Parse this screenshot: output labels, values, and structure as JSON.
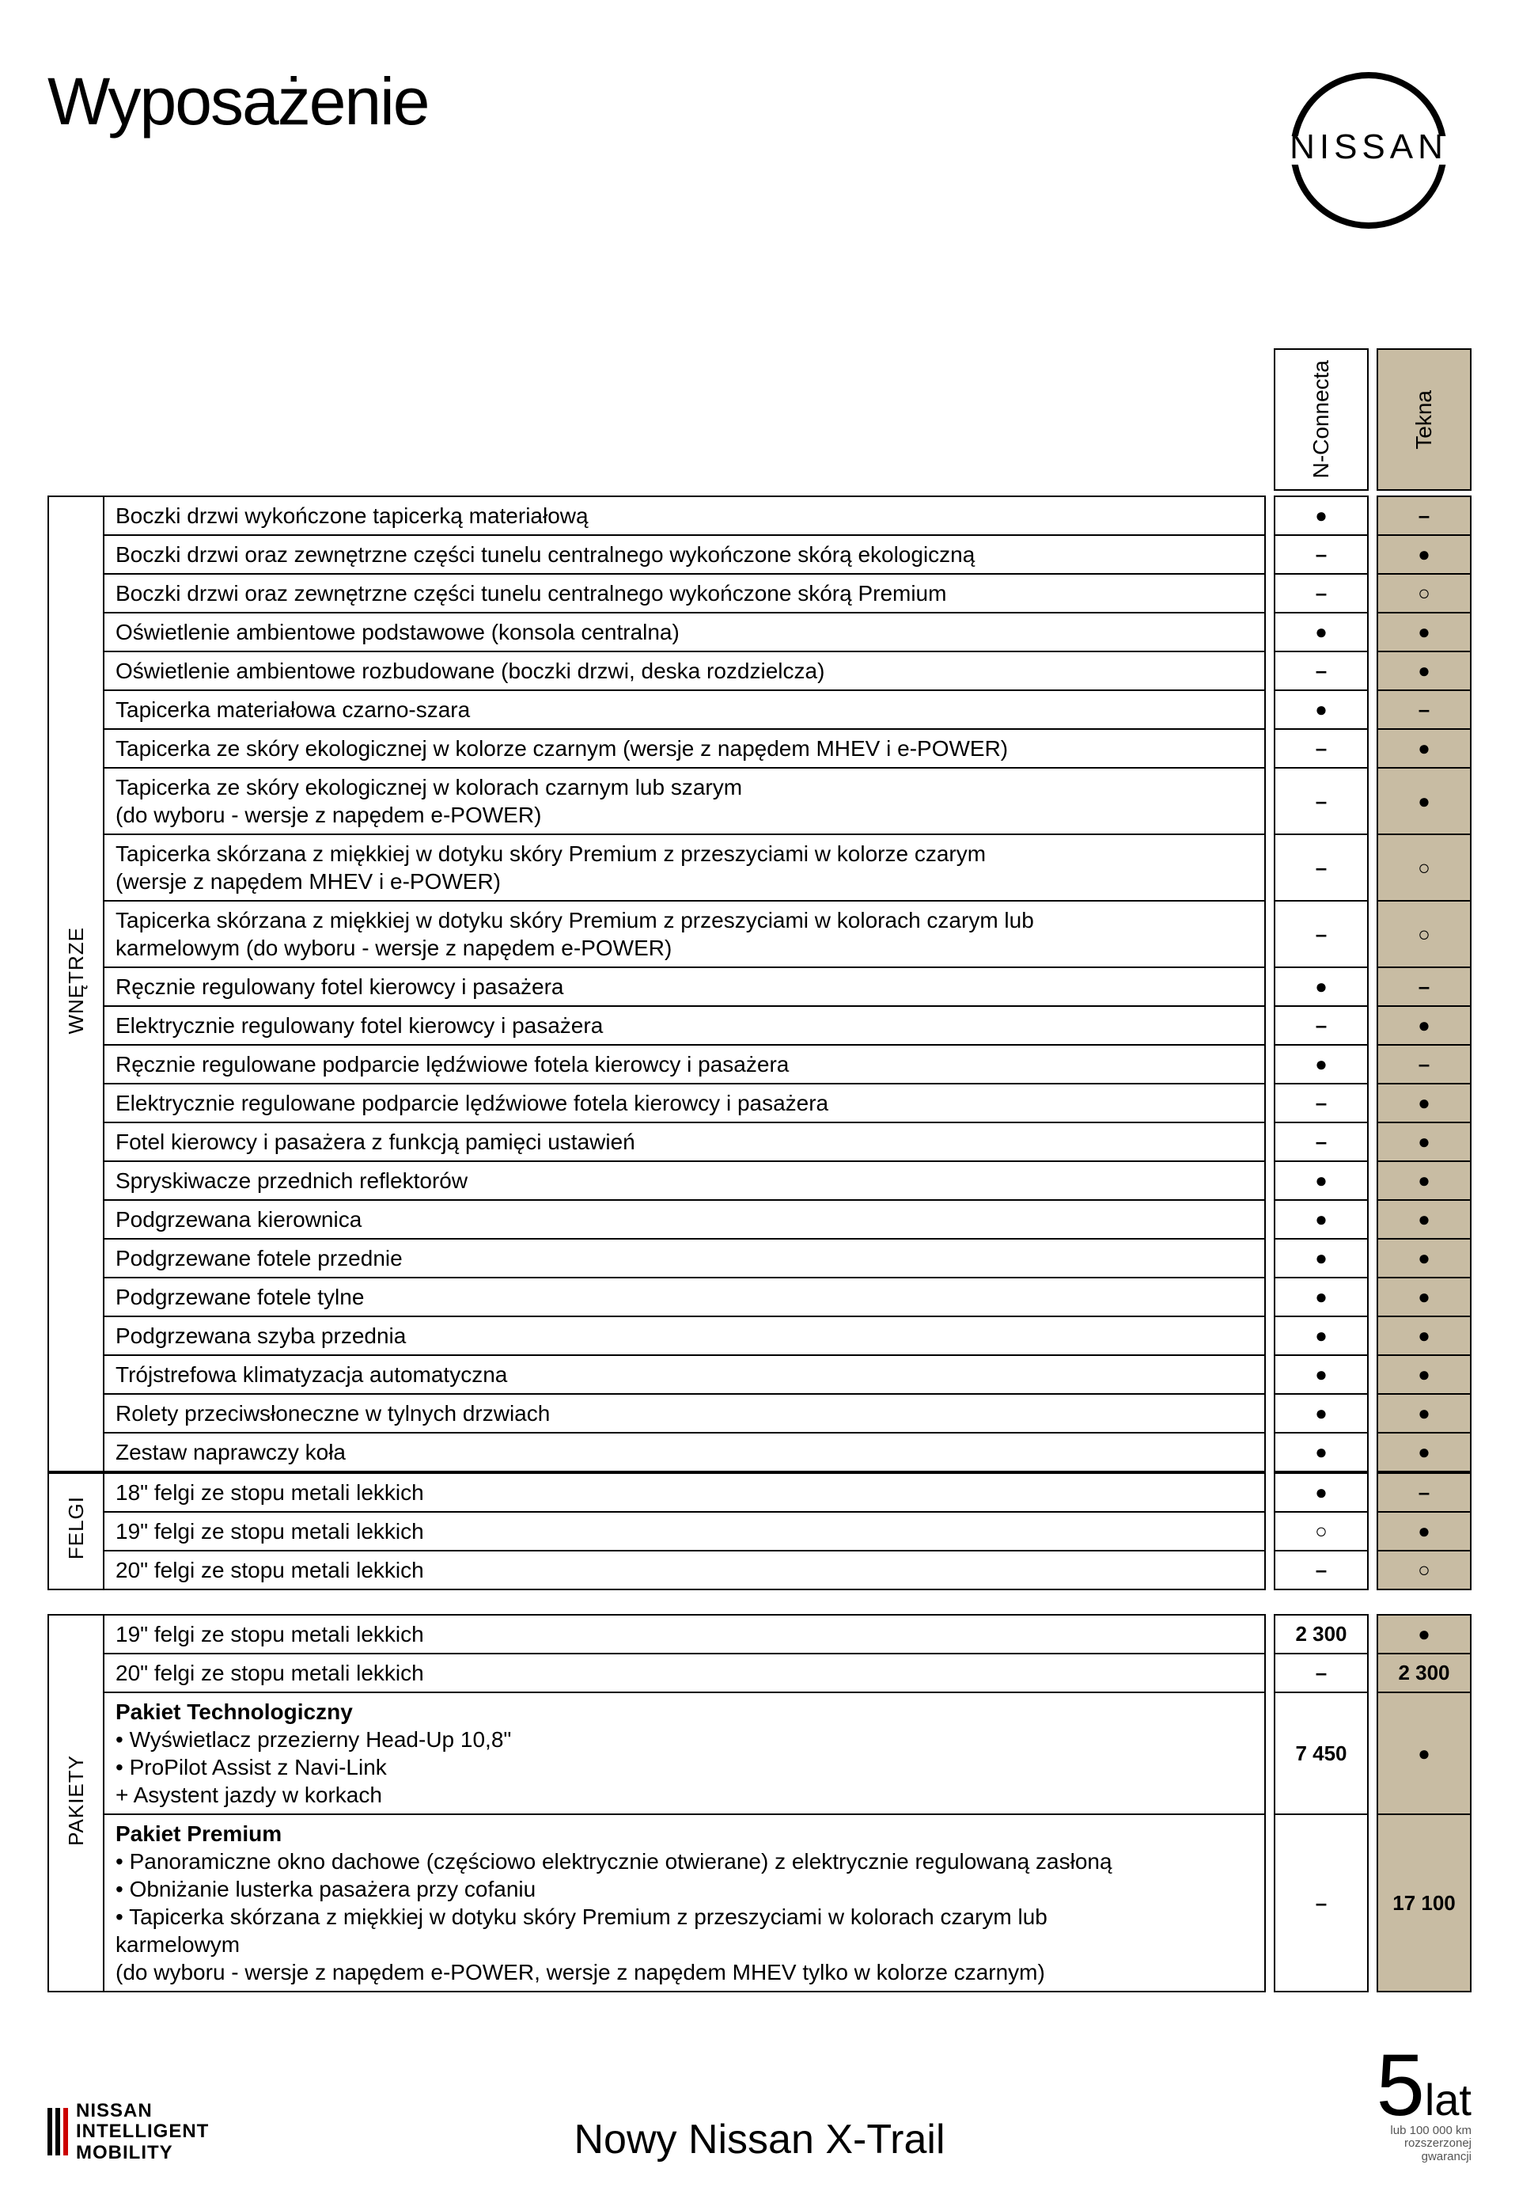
{
  "page_title": "Wyposażenie",
  "brand": "NISSAN",
  "columns": [
    {
      "label": "N-Connecta",
      "bg": "#ffffff"
    },
    {
      "label": "Tekna",
      "bg": "#c8bca3"
    }
  ],
  "colors": {
    "alt_bg": "#c8bca3",
    "border": "#000000",
    "text": "#000000",
    "sub_text": "#555555"
  },
  "tables": [
    {
      "categories": [
        {
          "name": "WNĘTRZE",
          "rows": [
            {
              "label": "Boczki drzwi wykończone tapicerką materiałową",
              "v": [
                "●",
                "–"
              ]
            },
            {
              "label": "Boczki drzwi oraz zewnętrzne części tunelu centralnego wykończone skórą ekologiczną",
              "v": [
                "–",
                "●"
              ]
            },
            {
              "label": "Boczki drzwi oraz zewnętrzne części tunelu centralnego wykończone skórą Premium",
              "v": [
                "–",
                "○"
              ]
            },
            {
              "label": "Oświetlenie ambientowe podstawowe (konsola centralna)",
              "v": [
                "●",
                "●"
              ]
            },
            {
              "label": "Oświetlenie ambientowe rozbudowane (boczki drzwi, deska rozdzielcza)",
              "v": [
                "–",
                "●"
              ]
            },
            {
              "label": "Tapicerka materiałowa czarno-szara",
              "v": [
                "●",
                "–"
              ]
            },
            {
              "label": "Tapicerka ze skóry ekologicznej w kolorze czarnym (wersje z napędem MHEV i e-POWER)",
              "v": [
                "–",
                "●"
              ]
            },
            {
              "label": "Tapicerka ze skóry ekologicznej w kolorach czarnym lub szarym\n(do wyboru - wersje z napędem e-POWER)",
              "v": [
                "–",
                "●"
              ]
            },
            {
              "label": "Tapicerka skórzana z miękkiej w dotyku skóry Premium z przeszyciami w kolorze czarym\n(wersje z napędem MHEV i e-POWER)",
              "v": [
                "–",
                "○"
              ]
            },
            {
              "label": "Tapicerka skórzana z miękkiej w dotyku skóry Premium z przeszyciami w kolorach czarym lub\nkarmelowym (do wyboru - wersje z napędem e-POWER)",
              "v": [
                "–",
                "○"
              ]
            },
            {
              "label": "Ręcznie regulowany fotel kierowcy i pasażera",
              "v": [
                "●",
                "–"
              ]
            },
            {
              "label": "Elektrycznie regulowany fotel kierowcy i pasażera",
              "v": [
                "–",
                "●"
              ]
            },
            {
              "label": "Ręcznie regulowane podparcie lędźwiowe fotela kierowcy i pasażera",
              "v": [
                "●",
                "–"
              ]
            },
            {
              "label": "Elektrycznie regulowane podparcie lędźwiowe fotela kierowcy i pasażera",
              "v": [
                "–",
                "●"
              ]
            },
            {
              "label": "Fotel kierowcy i pasażera z funkcją pamięci ustawień",
              "v": [
                "–",
                "●"
              ]
            },
            {
              "label": "Spryskiwacze przednich reflektorów",
              "v": [
                "●",
                "●"
              ]
            },
            {
              "label": "Podgrzewana kierownica",
              "v": [
                "●",
                "●"
              ]
            },
            {
              "label": "Podgrzewane fotele przednie",
              "v": [
                "●",
                "●"
              ]
            },
            {
              "label": "Podgrzewane fotele tylne",
              "v": [
                "●",
                "●"
              ]
            },
            {
              "label": "Podgrzewana szyba przednia",
              "v": [
                "●",
                "●"
              ]
            },
            {
              "label": "Trójstrefowa klimatyzacja automatyczna",
              "v": [
                "●",
                "●"
              ]
            },
            {
              "label": "Rolety przeciwsłoneczne w tylnych drzwiach",
              "v": [
                "●",
                "●"
              ]
            },
            {
              "label": "Zestaw naprawczy koła",
              "v": [
                "●",
                "●"
              ]
            }
          ]
        },
        {
          "name": "FELGI",
          "rows": [
            {
              "label": "18\" felgi ze stopu metali lekkich",
              "v": [
                "●",
                "–"
              ]
            },
            {
              "label": "19\" felgi ze stopu metali lekkich",
              "v": [
                "○",
                "●"
              ]
            },
            {
              "label": "20\" felgi ze stopu metali lekkich",
              "v": [
                "–",
                "○"
              ]
            }
          ]
        }
      ]
    },
    {
      "categories": [
        {
          "name": "PAKIETY",
          "rows": [
            {
              "label": "19\" felgi ze stopu metali lekkich",
              "v": [
                "2 300",
                "●"
              ]
            },
            {
              "label": "20\" felgi ze stopu metali lekkich",
              "v": [
                "–",
                "2 300"
              ]
            },
            {
              "label_html": true,
              "label": "<span class=\"bold\">Pakiet Technologiczny</span>\n• Wyświetlacz przezierny Head-Up 10,8\"\n• ProPilot Assist z Navi-Link\n+ Asystent jazdy w korkach",
              "v": [
                "7 450",
                "●"
              ]
            },
            {
              "label_html": true,
              "label": "<span class=\"bold\">Pakiet Premium</span>\n• Panoramiczne okno dachowe (częściowo elektrycznie otwierane) z elektrycznie regulowaną zasłoną\n• Obniżanie lusterka pasażera przy cofaniu\n• Tapicerka skórzana z miękkiej w dotyku skóry Premium z przeszyciami w kolorach czarym lub\nkarmelowym\n(do wyboru - wersje z napędem e-POWER, wersje z napędem MHEV tylko w kolorze czarnym)",
              "v": [
                "–",
                "17 100"
              ]
            }
          ]
        }
      ]
    }
  ],
  "footer": {
    "left_lines": [
      "NISSAN",
      "INTELLIGENT",
      "MOBILITY"
    ],
    "center": "Nowy Nissan X-Trail",
    "warranty_number": "5",
    "warranty_unit": "lat",
    "warranty_sub": "lub 100 000 km\nrozszerzonej\ngwarancji"
  }
}
